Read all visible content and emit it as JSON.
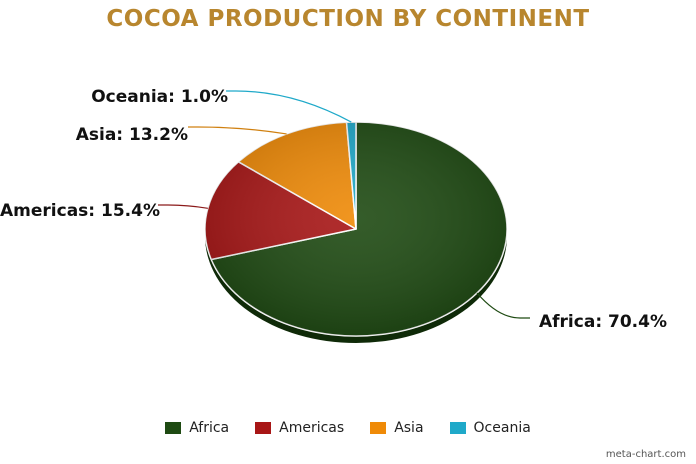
{
  "chart_data": {
    "type": "pie",
    "title": "COCOA PRODUCTION BY CONTINENT",
    "slices": [
      {
        "name": "Africa",
        "value": 70.4,
        "label": "Africa: 70.4%",
        "color": "#1e4a12",
        "line_color": "#1e4a12"
      },
      {
        "name": "Americas",
        "value": 15.4,
        "label": "Americas: 15.4%",
        "color": "#a81616",
        "line_color": "#8b1a1a"
      },
      {
        "name": "Asia",
        "value": 13.2,
        "label": "Asia: 13.2%",
        "color": "#ef8a07",
        "line_color": "#d08010"
      },
      {
        "name": "Oceania",
        "value": 1.0,
        "label": "Oceania: 1.0%",
        "color": "#1fa9c9",
        "line_color": "#1fa9c9"
      }
    ],
    "legend_position": "bottom"
  },
  "credit": "meta-chart.com"
}
